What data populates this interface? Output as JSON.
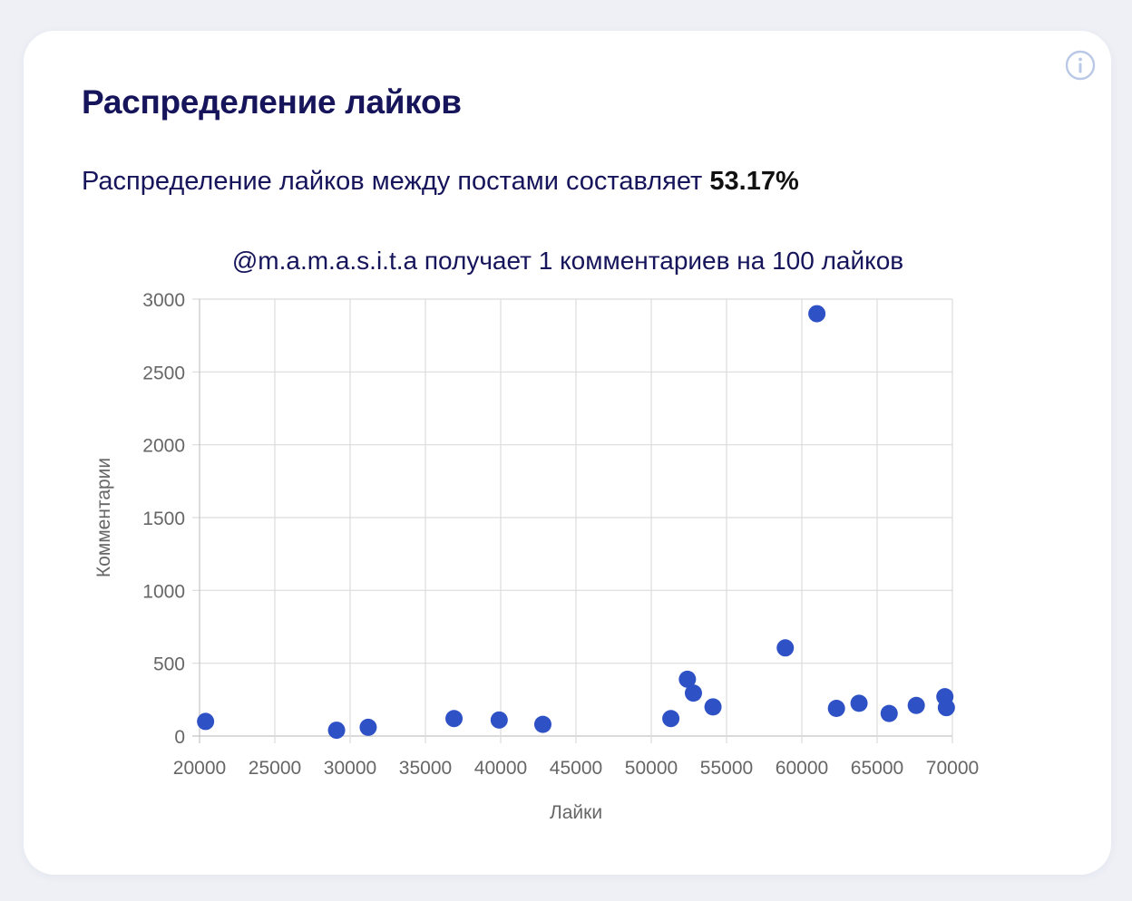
{
  "card": {
    "title": "Распределение лайков",
    "summary_text": "Распределение лайков между постами составляет ",
    "summary_value": "53.17%",
    "info_icon": "info-icon"
  },
  "colors": {
    "title": "#16145a",
    "point": "#2f51c6",
    "grid": "#dcdcdc",
    "axis_text": "#666666",
    "info_icon": "#b9c8e6"
  },
  "chart_data": {
    "type": "scatter",
    "title": "@m.a.m.a.s.i.t.a получает 1 комментариев на 100 лайков",
    "xlabel": "Лайки",
    "ylabel": "Комментарии",
    "xlim": [
      20000,
      70000
    ],
    "ylim": [
      0,
      3000
    ],
    "xticks": [
      20000,
      25000,
      30000,
      35000,
      40000,
      45000,
      50000,
      55000,
      60000,
      65000,
      70000
    ],
    "yticks": [
      0,
      500,
      1000,
      1500,
      2000,
      2500,
      3000
    ],
    "grid": true,
    "series": [
      {
        "points": [
          {
            "x": 20400,
            "y": 100
          },
          {
            "x": 29100,
            "y": 40
          },
          {
            "x": 31200,
            "y": 60
          },
          {
            "x": 36900,
            "y": 120
          },
          {
            "x": 39900,
            "y": 110
          },
          {
            "x": 42800,
            "y": 80
          },
          {
            "x": 51300,
            "y": 120
          },
          {
            "x": 52400,
            "y": 390
          },
          {
            "x": 52800,
            "y": 295
          },
          {
            "x": 54100,
            "y": 200
          },
          {
            "x": 58900,
            "y": 605
          },
          {
            "x": 61000,
            "y": 2900
          },
          {
            "x": 62300,
            "y": 190
          },
          {
            "x": 63800,
            "y": 225
          },
          {
            "x": 65800,
            "y": 155
          },
          {
            "x": 67600,
            "y": 210
          },
          {
            "x": 69500,
            "y": 270
          },
          {
            "x": 69600,
            "y": 195
          }
        ]
      }
    ]
  }
}
